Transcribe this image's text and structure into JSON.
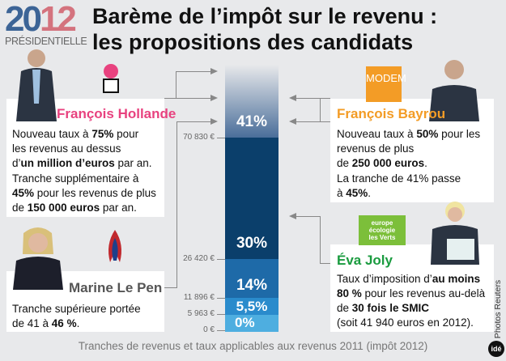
{
  "logo": {
    "year_a": "20",
    "year_b": "12",
    "subtitle": "PRÉSIDENTIELLE"
  },
  "title": {
    "line1": "Barème de l’impôt sur le revenu :",
    "line2": "les propositions des candidats"
  },
  "candidates": {
    "hollande": {
      "name": "François Hollande",
      "color": "#e8427f",
      "p1": [
        "Nouveau taux à ",
        "75%",
        " pour",
        "les revenus au dessus",
        "d’",
        "un million d’euros",
        " par an."
      ],
      "p2": [
        "Tranche supplémentaire à",
        "45%",
        " pour les revenus de plus",
        "de ",
        "150 000 euros",
        " par an."
      ]
    },
    "lepen": {
      "name": "Marine Le Pen",
      "color": "#555555",
      "p1": [
        "Tranche supérieure portée",
        "de 41 à ",
        "46 %",
        "."
      ]
    },
    "bayrou": {
      "name": "François Bayrou",
      "party_logo": "MODEM",
      "color": "#f39c26",
      "p1": [
        "Nouveau taux à ",
        "50%",
        " pour les",
        "revenus de plus",
        "de ",
        "250 000 euros",
        "."
      ],
      "p2": [
        "La tranche de 41% passe",
        "à ",
        "45%",
        "."
      ]
    },
    "joly": {
      "name": "Éva Joly",
      "party_logo": [
        "europe",
        "écologie",
        "les Verts"
      ],
      "color": "#1a9b3f",
      "p1": [
        "Taux d’imposition d’",
        "au moins",
        "80 %",
        " pour les revenus au-delà",
        "de ",
        "30 fois le SMIC"
      ],
      "p2": "(soit 41 940 euros en 2012)."
    }
  },
  "chart_data": {
    "type": "bar",
    "brackets": [
      {
        "rate": "0%",
        "from": 0,
        "to": 5963,
        "color": "#4eaee0"
      },
      {
        "rate": "5,5%",
        "from": 5963,
        "to": 11896,
        "color": "#2a8bcc"
      },
      {
        "rate": "14%",
        "from": 11896,
        "to": 26420,
        "color": "#1e6aa8"
      },
      {
        "rate": "30%",
        "from": 26420,
        "to": 70830,
        "color": "#0b3f6b"
      },
      {
        "rate": "41%",
        "from": 70830,
        "to": null,
        "color": "#4a6e9a"
      }
    ],
    "threshold_labels": [
      "0 €",
      "5 963 €",
      "11 896 €",
      "26 420 €",
      "70 830 €"
    ]
  },
  "caption": "Tranches de revenus et taux applicables aux revenus 2011 (impôt 2012)",
  "credit": "Photos Reuters",
  "brand": "idé"
}
